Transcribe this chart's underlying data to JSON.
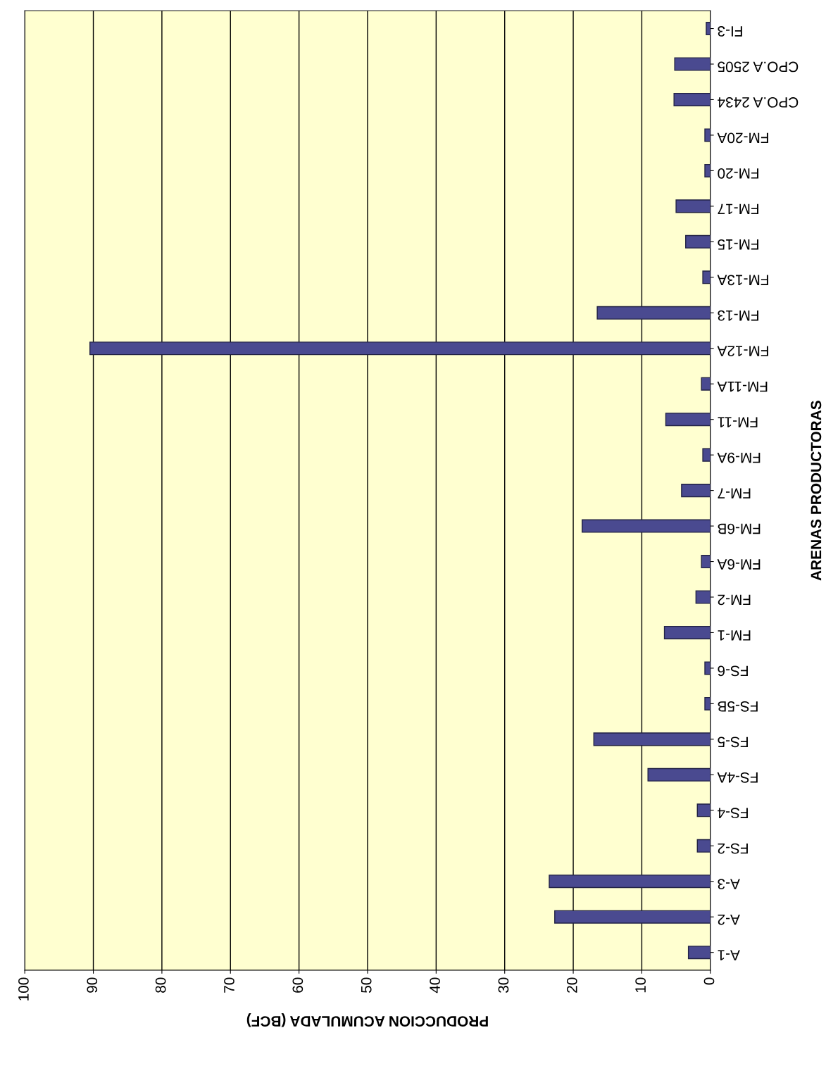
{
  "chart_data": {
    "type": "bar",
    "orientation": "horizontal",
    "xlabel": "PRODUCCION ACUMULADA (BCF)",
    "ylabel": "ARENAS PRODUCTORAS",
    "categories": [
      "FI-3",
      "CPO.A 2505",
      "CPO.A 2434",
      "FM-20A",
      "FM-20",
      "FM-17",
      "FM-15",
      "FM-13A",
      "FM-13",
      "FM-12A",
      "FM-11A",
      "FM-11",
      "FM-9A",
      "FM-7",
      "FM-6B",
      "FM-6A",
      "FM-2",
      "FM-1",
      "FS-6",
      "FS-5B",
      "FS-5",
      "FS-4A",
      "FS-4",
      "FS-2",
      "A-3",
      "A-2",
      "A-1"
    ],
    "values": [
      0.6,
      5.2,
      5.3,
      0.8,
      0.8,
      5,
      3.6,
      1.1,
      16.5,
      90.5,
      1.3,
      6.5,
      1.1,
      4.2,
      18.7,
      1.3,
      2.1,
      6.7,
      0.8,
      0.8,
      17,
      9.1,
      1.9,
      1.9,
      23.5,
      22.7,
      3.2
    ],
    "color": "#4a4a90",
    "xlim": [
      100,
      0
    ],
    "xticks": [
      0,
      10,
      20,
      30,
      40,
      50,
      60,
      70,
      80,
      90,
      100
    ],
    "grid": "x"
  }
}
